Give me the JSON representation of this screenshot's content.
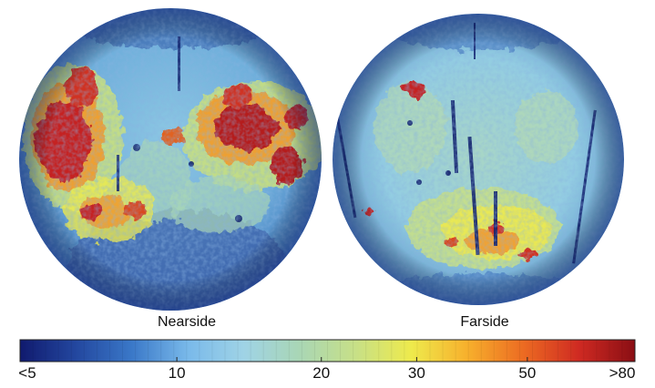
{
  "globes": [
    {
      "label": "Nearside"
    },
    {
      "label": "Farside"
    }
  ],
  "colorbar": {
    "ticks": [
      "<5",
      "10",
      "20",
      "30",
      "50",
      ">80"
    ],
    "stops": [
      "#101a6e",
      "#23479f",
      "#3a78c8",
      "#79b9ea",
      "#9fd3e6",
      "#a9d6b5",
      "#c7e087",
      "#eeea4c",
      "#f7b02c",
      "#ec6b22",
      "#cf2a22",
      "#8a0e14"
    ]
  }
}
